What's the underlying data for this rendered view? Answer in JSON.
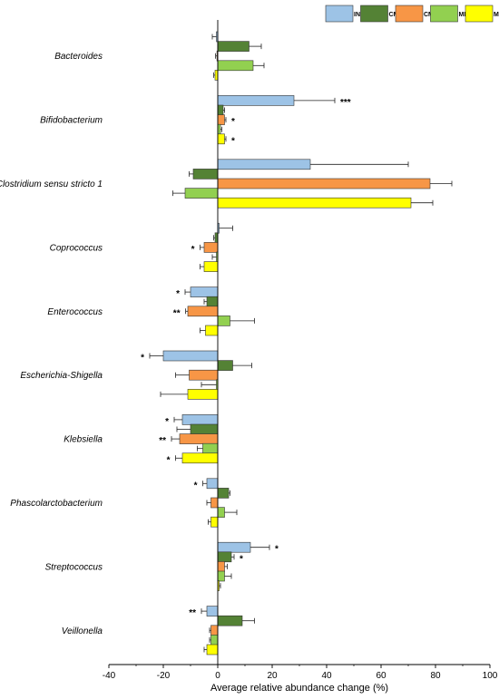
{
  "chart_data": {
    "type": "bar",
    "orientation": "horizontal",
    "xlabel": "Average relative abundance change (%)",
    "xlim": [
      -40,
      100
    ],
    "xticks": [
      -40,
      -20,
      0,
      20,
      40,
      60,
      80,
      100
    ],
    "grid": false,
    "legend_position": "top-right",
    "categories": [
      "Bacteroides",
      "Bifidobacterium",
      "Clostridium sensu stricto 1",
      "Coprococcus",
      "Enterococcus",
      "Escherichia-Shigella",
      "Klebsiella",
      "Phascolarctobacterium",
      "Streptococcus",
      "Veillonella"
    ],
    "series": [
      {
        "name": "INL",
        "color": "#9dc3e6",
        "values": [
          -0.5,
          28,
          34,
          0.5,
          -10,
          -20,
          -13,
          -4,
          12,
          -4
        ],
        "errors": [
          1.5,
          15,
          36,
          5,
          2,
          5,
          3,
          1.5,
          7,
          2
        ],
        "significance": [
          "",
          "***",
          "",
          "",
          "*",
          "*",
          "*",
          "*",
          "*",
          "**"
        ]
      },
      {
        "name": "CME",
        "color": "#548235",
        "values": [
          11.5,
          2,
          -9,
          -1,
          -4,
          5.5,
          -10,
          4,
          5,
          9
        ],
        "errors": [
          4.5,
          0.5,
          1.5,
          0.5,
          1,
          7,
          5,
          0.5,
          1,
          4.5
        ],
        "significance": [
          "",
          "",
          "",
          "",
          "",
          "",
          "",
          "",
          "*",
          ""
        ]
      },
      {
        "name": "CMF",
        "color": "#f79646",
        "values": [
          -0.3,
          2.5,
          78,
          -5,
          -11,
          -10.5,
          -14,
          -2.5,
          2.5,
          -2.5
        ],
        "errors": [
          0.5,
          0.5,
          8,
          1.5,
          0.8,
          5,
          3,
          1.5,
          1,
          0.5
        ],
        "significance": [
          "",
          "*",
          "",
          "*",
          "**",
          "",
          "**",
          "",
          "",
          ""
        ]
      },
      {
        "name": "MEE",
        "color": "#92d050",
        "values": [
          13,
          1,
          -12,
          -0.5,
          4.5,
          -0.5,
          -5.5,
          2.5,
          2.5,
          -2.5
        ],
        "errors": [
          4,
          0.5,
          4.5,
          1.5,
          9,
          5.5,
          2,
          4.5,
          2.5,
          0.5
        ],
        "significance": [
          "",
          "",
          "",
          "",
          "",
          "",
          "",
          "",
          "",
          ""
        ]
      },
      {
        "name": "MEF",
        "color": "#ffff00",
        "values": [
          -1,
          2.5,
          71,
          -5,
          -4.5,
          -11,
          -13,
          -2.5,
          0.5,
          -4
        ],
        "errors": [
          0.5,
          0.5,
          8,
          1.5,
          2,
          10,
          2.5,
          1,
          0.5,
          1
        ],
        "significance": [
          "",
          "*",
          "",
          "",
          "",
          "",
          "*",
          "",
          "",
          ""
        ]
      }
    ]
  }
}
